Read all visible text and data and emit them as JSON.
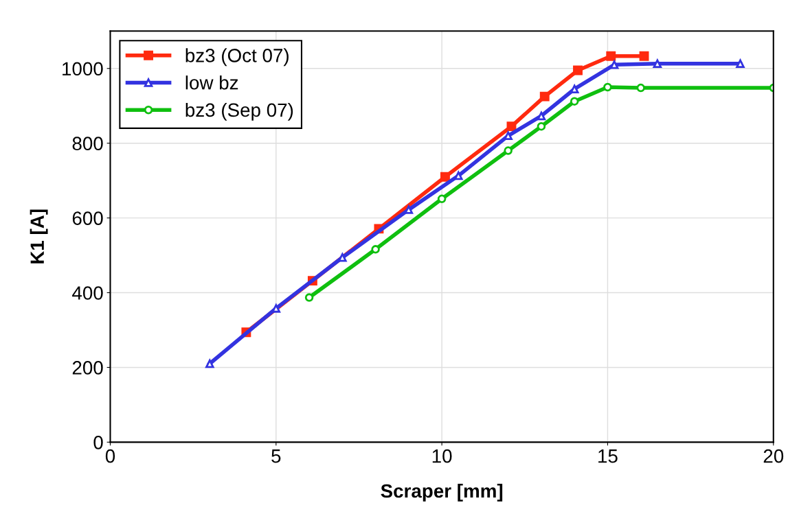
{
  "chart_data": {
    "type": "line",
    "xlabel": "Scraper [mm]",
    "ylabel": "K1 [A]",
    "xlim": [
      0,
      20
    ],
    "ylim": [
      0,
      1100
    ],
    "xticks": [
      0,
      5,
      10,
      15,
      20
    ],
    "yticks": [
      0,
      200,
      400,
      600,
      800,
      1000
    ],
    "grid": true,
    "legend": "top left",
    "series": [
      {
        "name": "bz3 (Oct 07)",
        "color": "#ff2a0f",
        "marker": "square",
        "x": [
          4.1,
          6.1,
          8.1,
          10.1,
          12.1,
          13.1,
          14.1,
          15.1,
          16.1
        ],
        "values": [
          294,
          432,
          571,
          710,
          845,
          925,
          995,
          1033,
          1033
        ]
      },
      {
        "name": "low bz",
        "color": "#3333e0",
        "marker": "triangle",
        "x": [
          3,
          5,
          7,
          9,
          10.5,
          12,
          13,
          14,
          15.2,
          16.5,
          19
        ],
        "values": [
          210,
          358,
          494,
          622,
          713,
          820,
          873,
          945,
          1010,
          1013,
          1013
        ]
      },
      {
        "name": "bz3 (Sep 07)",
        "color": "#0fbf0f",
        "marker": "circle",
        "x": [
          6,
          8,
          10,
          12,
          13,
          14,
          15,
          16,
          20
        ],
        "values": [
          387,
          516,
          651,
          780,
          845,
          912,
          950,
          948,
          948
        ]
      }
    ]
  }
}
